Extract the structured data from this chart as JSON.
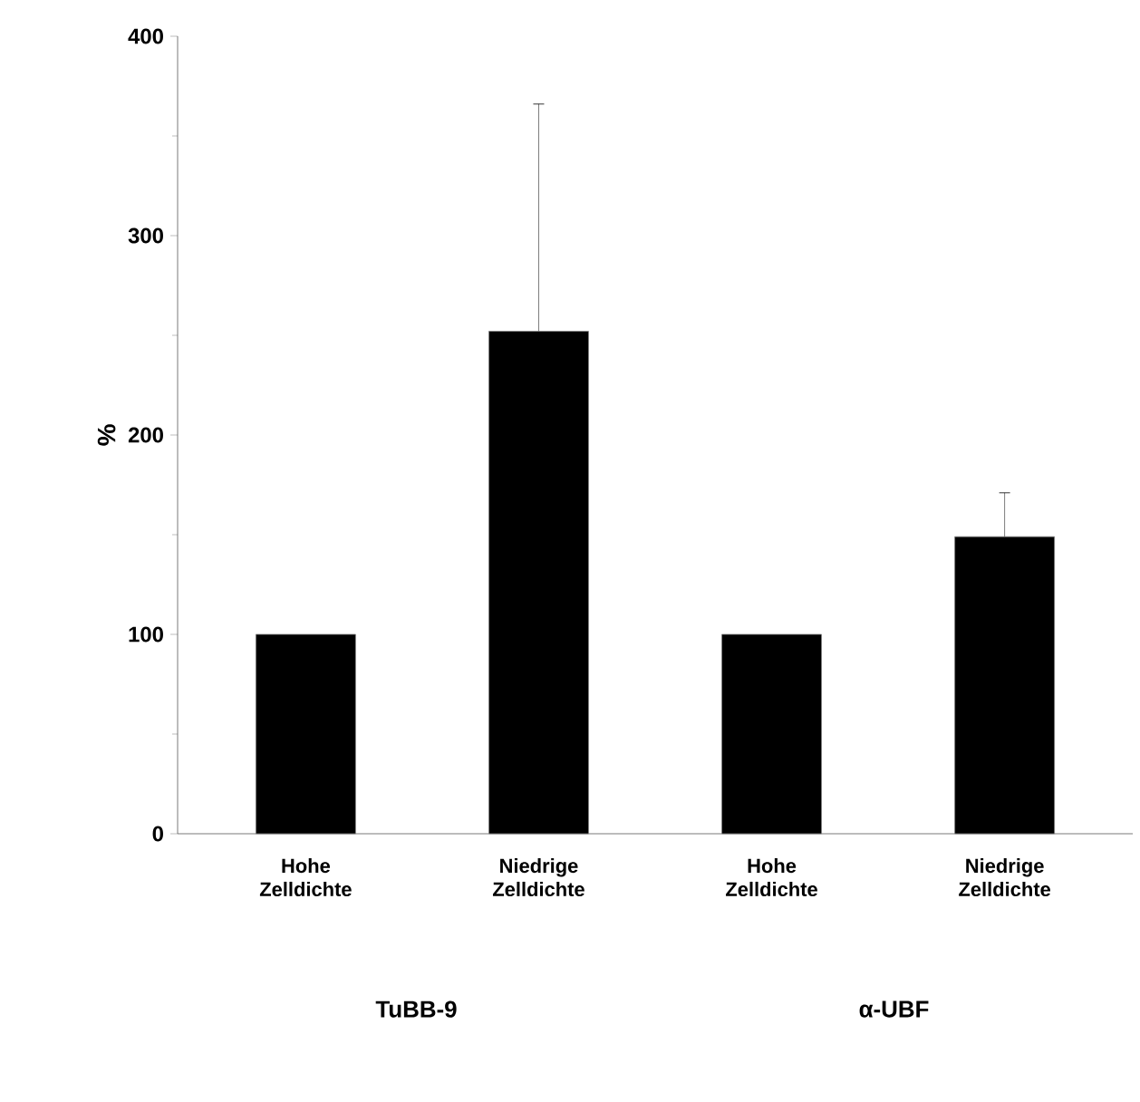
{
  "chart_data": {
    "type": "bar",
    "ylabel": "%",
    "categories": [
      "Hohe Zelldichte",
      "Niedrige Zelldichte",
      "Hohe Zelldichte",
      "Niedrige Zelldichte"
    ],
    "values": [
      100,
      252,
      100,
      149
    ],
    "errors": [
      null,
      114,
      null,
      22
    ],
    "color": "#000000",
    "ylim": [
      0,
      400
    ],
    "yticks": [
      0,
      100,
      200,
      300,
      400
    ],
    "annotations": [
      "TuBB-9",
      "α-UBF"
    ]
  }
}
